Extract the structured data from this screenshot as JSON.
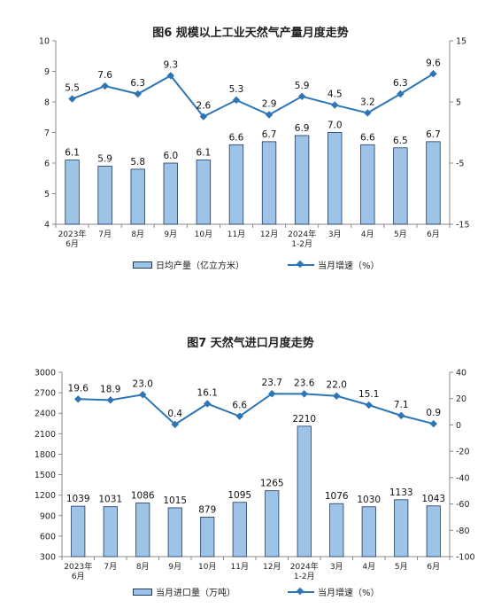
{
  "colors": {
    "bar_fill": "#9dc3e6",
    "bar_stroke": "#1f3864",
    "line": "#2e75b6",
    "axis": "#888888"
  },
  "chart_data": [
    {
      "type": "bar+line",
      "title": "图6  规模以上工业天然气产量月度走势",
      "categories": [
        [
          "2023年",
          "6月"
        ],
        [
          "7月"
        ],
        [
          "8月"
        ],
        [
          "9月"
        ],
        [
          "10月"
        ],
        [
          "11月"
        ],
        [
          "12月"
        ],
        [
          "2024年",
          "1-2月"
        ],
        [
          "3月"
        ],
        [
          "4月"
        ],
        [
          "5月"
        ],
        [
          "6月"
        ]
      ],
      "bar_series": {
        "name": "日均产量（亿立方米）",
        "values": [
          6.1,
          5.9,
          5.8,
          6.0,
          6.1,
          6.6,
          6.7,
          6.9,
          7.0,
          6.6,
          6.5,
          6.7
        ],
        "labels": [
          "6.1",
          "5.9",
          "5.8",
          "6.0",
          "6.1",
          "6.6",
          "6.7",
          "6.9",
          "7.0",
          "6.6",
          "6.5",
          "6.7"
        ]
      },
      "line_series": {
        "name": "当月增速（%）",
        "values": [
          5.5,
          7.6,
          6.3,
          9.3,
          2.6,
          5.3,
          2.9,
          5.9,
          4.5,
          3.2,
          6.3,
          9.6
        ],
        "labels": [
          "5.5",
          "7.6",
          "6.3",
          "9.3",
          "2.6",
          "5.3",
          "2.9",
          "5.9",
          "4.5",
          "3.2",
          "6.3",
          "9.6"
        ]
      },
      "y_left": {
        "min": 4,
        "max": 10,
        "ticks": [
          "4",
          "5",
          "6",
          "7",
          "8",
          "9",
          "10"
        ]
      },
      "y_right": {
        "min": -15,
        "max": 15,
        "ticks": [
          "-15",
          "-5",
          "5",
          "15"
        ]
      }
    },
    {
      "type": "bar+line",
      "title": "图7  天然气进口月度走势",
      "categories": [
        [
          "2023年",
          "6月"
        ],
        [
          "7月"
        ],
        [
          "8月"
        ],
        [
          "9月"
        ],
        [
          "10月"
        ],
        [
          "11月"
        ],
        [
          "12月"
        ],
        [
          "2024年",
          "1-2月"
        ],
        [
          "3月"
        ],
        [
          "4月"
        ],
        [
          "5月"
        ],
        [
          "6月"
        ]
      ],
      "bar_series": {
        "name": "当月进口量（万吨）",
        "values": [
          1039,
          1031,
          1086,
          1015,
          879,
          1095,
          1265,
          2210,
          1076,
          1030,
          1133,
          1043
        ],
        "labels": [
          "1039",
          "1031",
          "1086",
          "1015",
          "879",
          "1095",
          "1265",
          "2210",
          "1076",
          "1030",
          "1133",
          "1043"
        ]
      },
      "line_series": {
        "name": "当月增速（%）",
        "values": [
          19.6,
          18.9,
          23.0,
          0.4,
          16.1,
          6.6,
          23.7,
          23.6,
          22.0,
          15.1,
          7.1,
          0.9
        ],
        "labels": [
          "19.6",
          "18.9",
          "23.0",
          "0.4",
          "16.1",
          "6.6",
          "23.7",
          "23.6",
          "22.0",
          "15.1",
          "7.1",
          "0.9"
        ]
      },
      "y_left": {
        "min": 300,
        "max": 3000,
        "ticks": [
          "300",
          "600",
          "900",
          "1200",
          "1500",
          "1800",
          "2100",
          "2400",
          "2700",
          "3000"
        ]
      },
      "y_right": {
        "min": -100,
        "max": 40,
        "ticks": [
          "-100",
          "-80",
          "-60",
          "-40",
          "-20",
          "0",
          "20",
          "40"
        ]
      }
    }
  ]
}
